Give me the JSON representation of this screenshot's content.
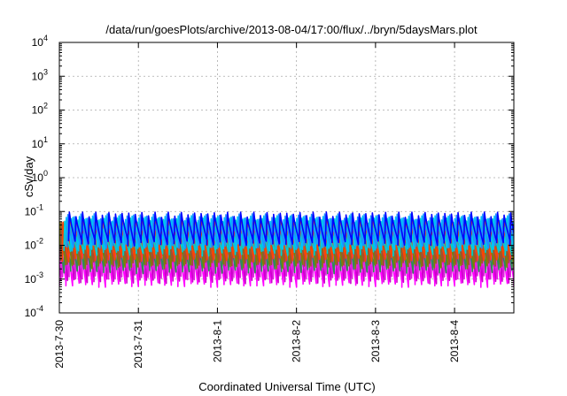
{
  "chart_data": {
    "type": "line",
    "title": "/data/run/goesPlots/archive/2013-08-04/17:00/flux/../bryn/5daysMars.plot",
    "xlabel": "Coordinated Universal Time (UTC)",
    "ylabel": "cSv/day",
    "y_scale": "log",
    "ylim": [
      0.0001,
      10000
    ],
    "y_ticks": [
      {
        "base": "10",
        "exp": "-4",
        "value": 0.0001
      },
      {
        "base": "10",
        "exp": "-3",
        "value": 0.001
      },
      {
        "base": "10",
        "exp": "-2",
        "value": 0.01
      },
      {
        "base": "10",
        "exp": "-1",
        "value": 0.1
      },
      {
        "base": "10",
        "exp": "0",
        "value": 1
      },
      {
        "base": "10",
        "exp": "1",
        "value": 10
      },
      {
        "base": "10",
        "exp": "2",
        "value": 100
      },
      {
        "base": "10",
        "exp": "3",
        "value": 1000
      },
      {
        "base": "10",
        "exp": "4",
        "value": 10000
      }
    ],
    "x_ticks": [
      "2013-7-30",
      "2013-7-31",
      "2013-8-1",
      "2013-8-2",
      "2013-8-3",
      "2013-8-4"
    ],
    "xlim_days": [
      0,
      5.75
    ],
    "grid": true,
    "periodic_pattern": {
      "cycles_per_day": 12,
      "note_values": "each curve rises from trough to peak once per ~2 hours"
    },
    "series": [
      {
        "color": "#ff00ff",
        "peak": 0.04,
        "trough": 0.0007
      },
      {
        "color": "#cc00cc",
        "peak": 0.045,
        "trough": 0.0009
      },
      {
        "color": "#e020e0",
        "peak": 0.05,
        "trough": 0.0012
      },
      {
        "color": "#2e8b57",
        "peak": 0.05,
        "trough": 0.0018
      },
      {
        "color": "#808000",
        "peak": 0.055,
        "trough": 0.0025
      },
      {
        "color": "#a0522d",
        "peak": 0.06,
        "trough": 0.003
      },
      {
        "color": "#ff4500",
        "peak": 0.065,
        "trough": 0.004
      },
      {
        "color": "#00ced1",
        "peak": 0.06,
        "trough": 0.006
      },
      {
        "color": "#00bfff",
        "peak": 0.07,
        "trough": 0.008
      },
      {
        "color": "#1e90ff",
        "peak": 0.08,
        "trough": 0.01
      },
      {
        "color": "#0000ff",
        "peak": 0.09,
        "trough": 0.012
      }
    ]
  }
}
